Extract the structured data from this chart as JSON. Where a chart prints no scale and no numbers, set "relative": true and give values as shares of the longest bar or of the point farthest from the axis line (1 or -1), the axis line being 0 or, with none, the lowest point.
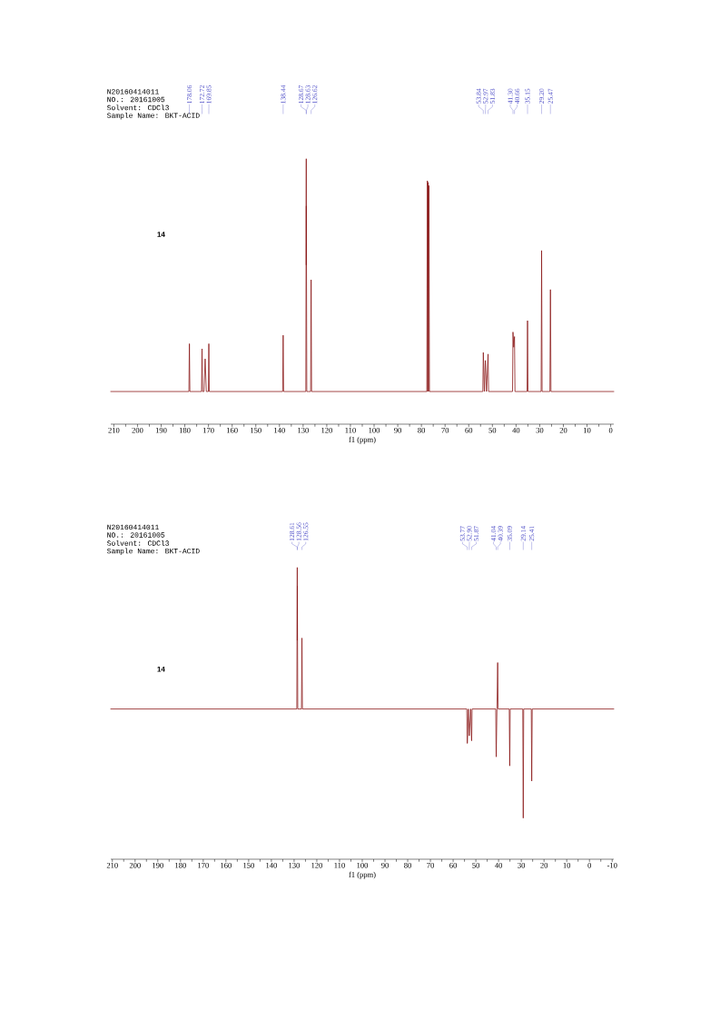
{
  "chart_data": [
    {
      "type": "line",
      "relative": true,
      "xlabel": "f1 (ppm)",
      "color": "#8b1a1a",
      "xlim": [
        211.3,
        -1.3
      ],
      "xticks": [
        210,
        {
          "value": 205,
          "label": null
        },
        200,
        {
          "value": 195,
          "label": null
        },
        190,
        {
          "value": 185,
          "label": null
        },
        180,
        {
          "value": 175,
          "label": null
        },
        170,
        {
          "value": 165,
          "label": null
        },
        160,
        {
          "value": 155,
          "label": null
        },
        150,
        {
          "value": 145,
          "label": null
        },
        140,
        {
          "value": 135,
          "label": null
        },
        130,
        {
          "value": 125,
          "label": null
        },
        120,
        {
          "value": 115,
          "label": null
        },
        110,
        {
          "value": 105,
          "label": null
        },
        100,
        {
          "value": 95,
          "label": null
        },
        90,
        {
          "value": 85,
          "label": null
        },
        80,
        {
          "value": 75,
          "label": null
        },
        70,
        {
          "value": 65,
          "label": null
        },
        60,
        {
          "value": 55,
          "label": null
        },
        50,
        {
          "value": 45,
          "label": null
        },
        40,
        {
          "value": 35,
          "label": null
        },
        30,
        {
          "value": 25,
          "label": null
        },
        20,
        {
          "value": 15,
          "label": null
        },
        10,
        {
          "value": 5,
          "label": null
        },
        0
      ],
      "x": [
        211.3,
        178.26,
        178.06,
        177.86,
        172.92,
        172.72,
        172.52,
        171.9,
        171.4,
        170.9,
        170.05,
        169.85,
        169.65,
        138.64,
        138.44,
        138.24,
        128.85,
        128.67,
        128.65,
        128.63,
        128.45,
        126.82,
        126.62,
        126.42,
        77.7,
        77.48,
        77.32,
        77.16,
        77.0,
        76.84,
        76.6,
        54.05,
        53.84,
        53.4,
        52.97,
        52.5,
        51.83,
        51.6,
        41.5,
        41.3,
        41.0,
        40.66,
        40.45,
        35.35,
        35.15,
        34.95,
        29.4,
        29.2,
        29.0,
        25.7,
        25.47,
        25.25,
        -1.3
      ],
      "values": [
        0.123,
        0.123,
        0.303,
        0.123,
        0.123,
        0.284,
        0.123,
        0.123,
        0.246,
        0.123,
        0.123,
        0.303,
        0.123,
        0.123,
        0.335,
        0.123,
        0.123,
        1.0,
        0.6,
        0.822,
        0.123,
        0.123,
        0.544,
        0.123,
        0.123,
        0.917,
        0.123,
        0.911,
        0.123,
        0.899,
        0.123,
        0.123,
        0.27,
        0.123,
        0.24,
        0.123,
        0.264,
        0.123,
        0.123,
        0.347,
        0.29,
        0.33,
        0.123,
        0.123,
        0.39,
        0.123,
        0.123,
        0.654,
        0.123,
        0.123,
        0.507,
        0.123,
        0.123
      ],
      "annotations": [
        "N20160414011",
        "NO.: 20161005",
        "Solvent: CDCl3",
        "Sample Name: BKT-ACID",
        "14",
        {
          "text": "178.06",
          "x": 178.06
        },
        {
          "text": "172.72",
          "x": 172.72
        },
        {
          "text": "169.85",
          "x": 169.85
        },
        {
          "text": "138.44",
          "x": 138.44
        },
        {
          "text": "128.67",
          "x": 128.67
        },
        {
          "text": "128.63",
          "x": 128.63
        },
        {
          "text": "126.62",
          "x": 126.62
        },
        {
          "text": "53.84",
          "x": 53.84
        },
        {
          "text": "52.97",
          "x": 52.97
        },
        {
          "text": "51.83",
          "x": 51.83
        },
        {
          "text": "41.30",
          "x": 41.3
        },
        {
          "text": "40.66",
          "x": 40.66
        },
        {
          "text": "35.15",
          "x": 35.15
        },
        {
          "text": "29.20",
          "x": 29.2
        },
        {
          "text": "25.47",
          "x": 25.47
        }
      ]
    },
    {
      "type": "line",
      "relative": true,
      "xlabel": "f1 (ppm)",
      "color": "#8b1a1a",
      "xlim": [
        210.7,
        -10.7
      ],
      "xticks": [
        210,
        {
          "value": 205,
          "label": null
        },
        200,
        {
          "value": 195,
          "label": null
        },
        190,
        {
          "value": 185,
          "label": null
        },
        180,
        {
          "value": 175,
          "label": null
        },
        170,
        {
          "value": 165,
          "label": null
        },
        160,
        {
          "value": 155,
          "label": null
        },
        150,
        {
          "value": 145,
          "label": null
        },
        140,
        {
          "value": 135,
          "label": null
        },
        130,
        {
          "value": 125,
          "label": null
        },
        120,
        {
          "value": 115,
          "label": null
        },
        110,
        {
          "value": 105,
          "label": null
        },
        100,
        {
          "value": 95,
          "label": null
        },
        90,
        {
          "value": 85,
          "label": null
        },
        80,
        {
          "value": 75,
          "label": null
        },
        70,
        {
          "value": 65,
          "label": null
        },
        60,
        {
          "value": 55,
          "label": null
        },
        50,
        {
          "value": 45,
          "label": null
        },
        40,
        {
          "value": 35,
          "label": null
        },
        30,
        {
          "value": 25,
          "label": null
        },
        20,
        {
          "value": 15,
          "label": null
        },
        10,
        {
          "value": 5,
          "label": null
        },
        0,
        {
          "value": -5,
          "label": null
        },
        -10
      ],
      "x": [
        210.7,
        128.8,
        128.61,
        128.585,
        128.56,
        128.4,
        126.75,
        126.55,
        126.35,
        54.0,
        53.77,
        53.3,
        52.9,
        52.3,
        51.87,
        51.65,
        41.25,
        41.04,
        40.72,
        40.39,
        40.2,
        35.3,
        35.09,
        34.9,
        29.35,
        29.14,
        28.95,
        25.6,
        25.41,
        25.2,
        -10.7
      ],
      "values": [
        0.515,
        0.515,
        1.0,
        0.75,
        0.937,
        0.515,
        0.515,
        0.758,
        0.515,
        0.515,
        0.397,
        0.515,
        0.423,
        0.515,
        0.406,
        0.515,
        0.515,
        0.351,
        0.515,
        0.674,
        0.515,
        0.515,
        0.32,
        0.515,
        0.515,
        0.141,
        0.515,
        0.515,
        0.268,
        0.515,
        0.515
      ],
      "annotations": [
        "N20160414011",
        "NO.: 20161005",
        "Solvent: CDCl3",
        "Sample Name: BKT-ACID",
        "14",
        {
          "text": "128.61",
          "x": 128.61
        },
        {
          "text": "128.56",
          "x": 128.56
        },
        {
          "text": "126.55",
          "x": 126.55
        },
        {
          "text": "53.77",
          "x": 53.77
        },
        {
          "text": "52.90",
          "x": 52.9
        },
        {
          "text": "51.87",
          "x": 51.87
        },
        {
          "text": "41.04",
          "x": 41.04
        },
        {
          "text": "40.39",
          "x": 40.39
        },
        {
          "text": "35.09",
          "x": 35.09
        },
        {
          "text": "29.14",
          "x": 29.14
        },
        {
          "text": "25.41",
          "x": 25.41
        }
      ]
    }
  ]
}
